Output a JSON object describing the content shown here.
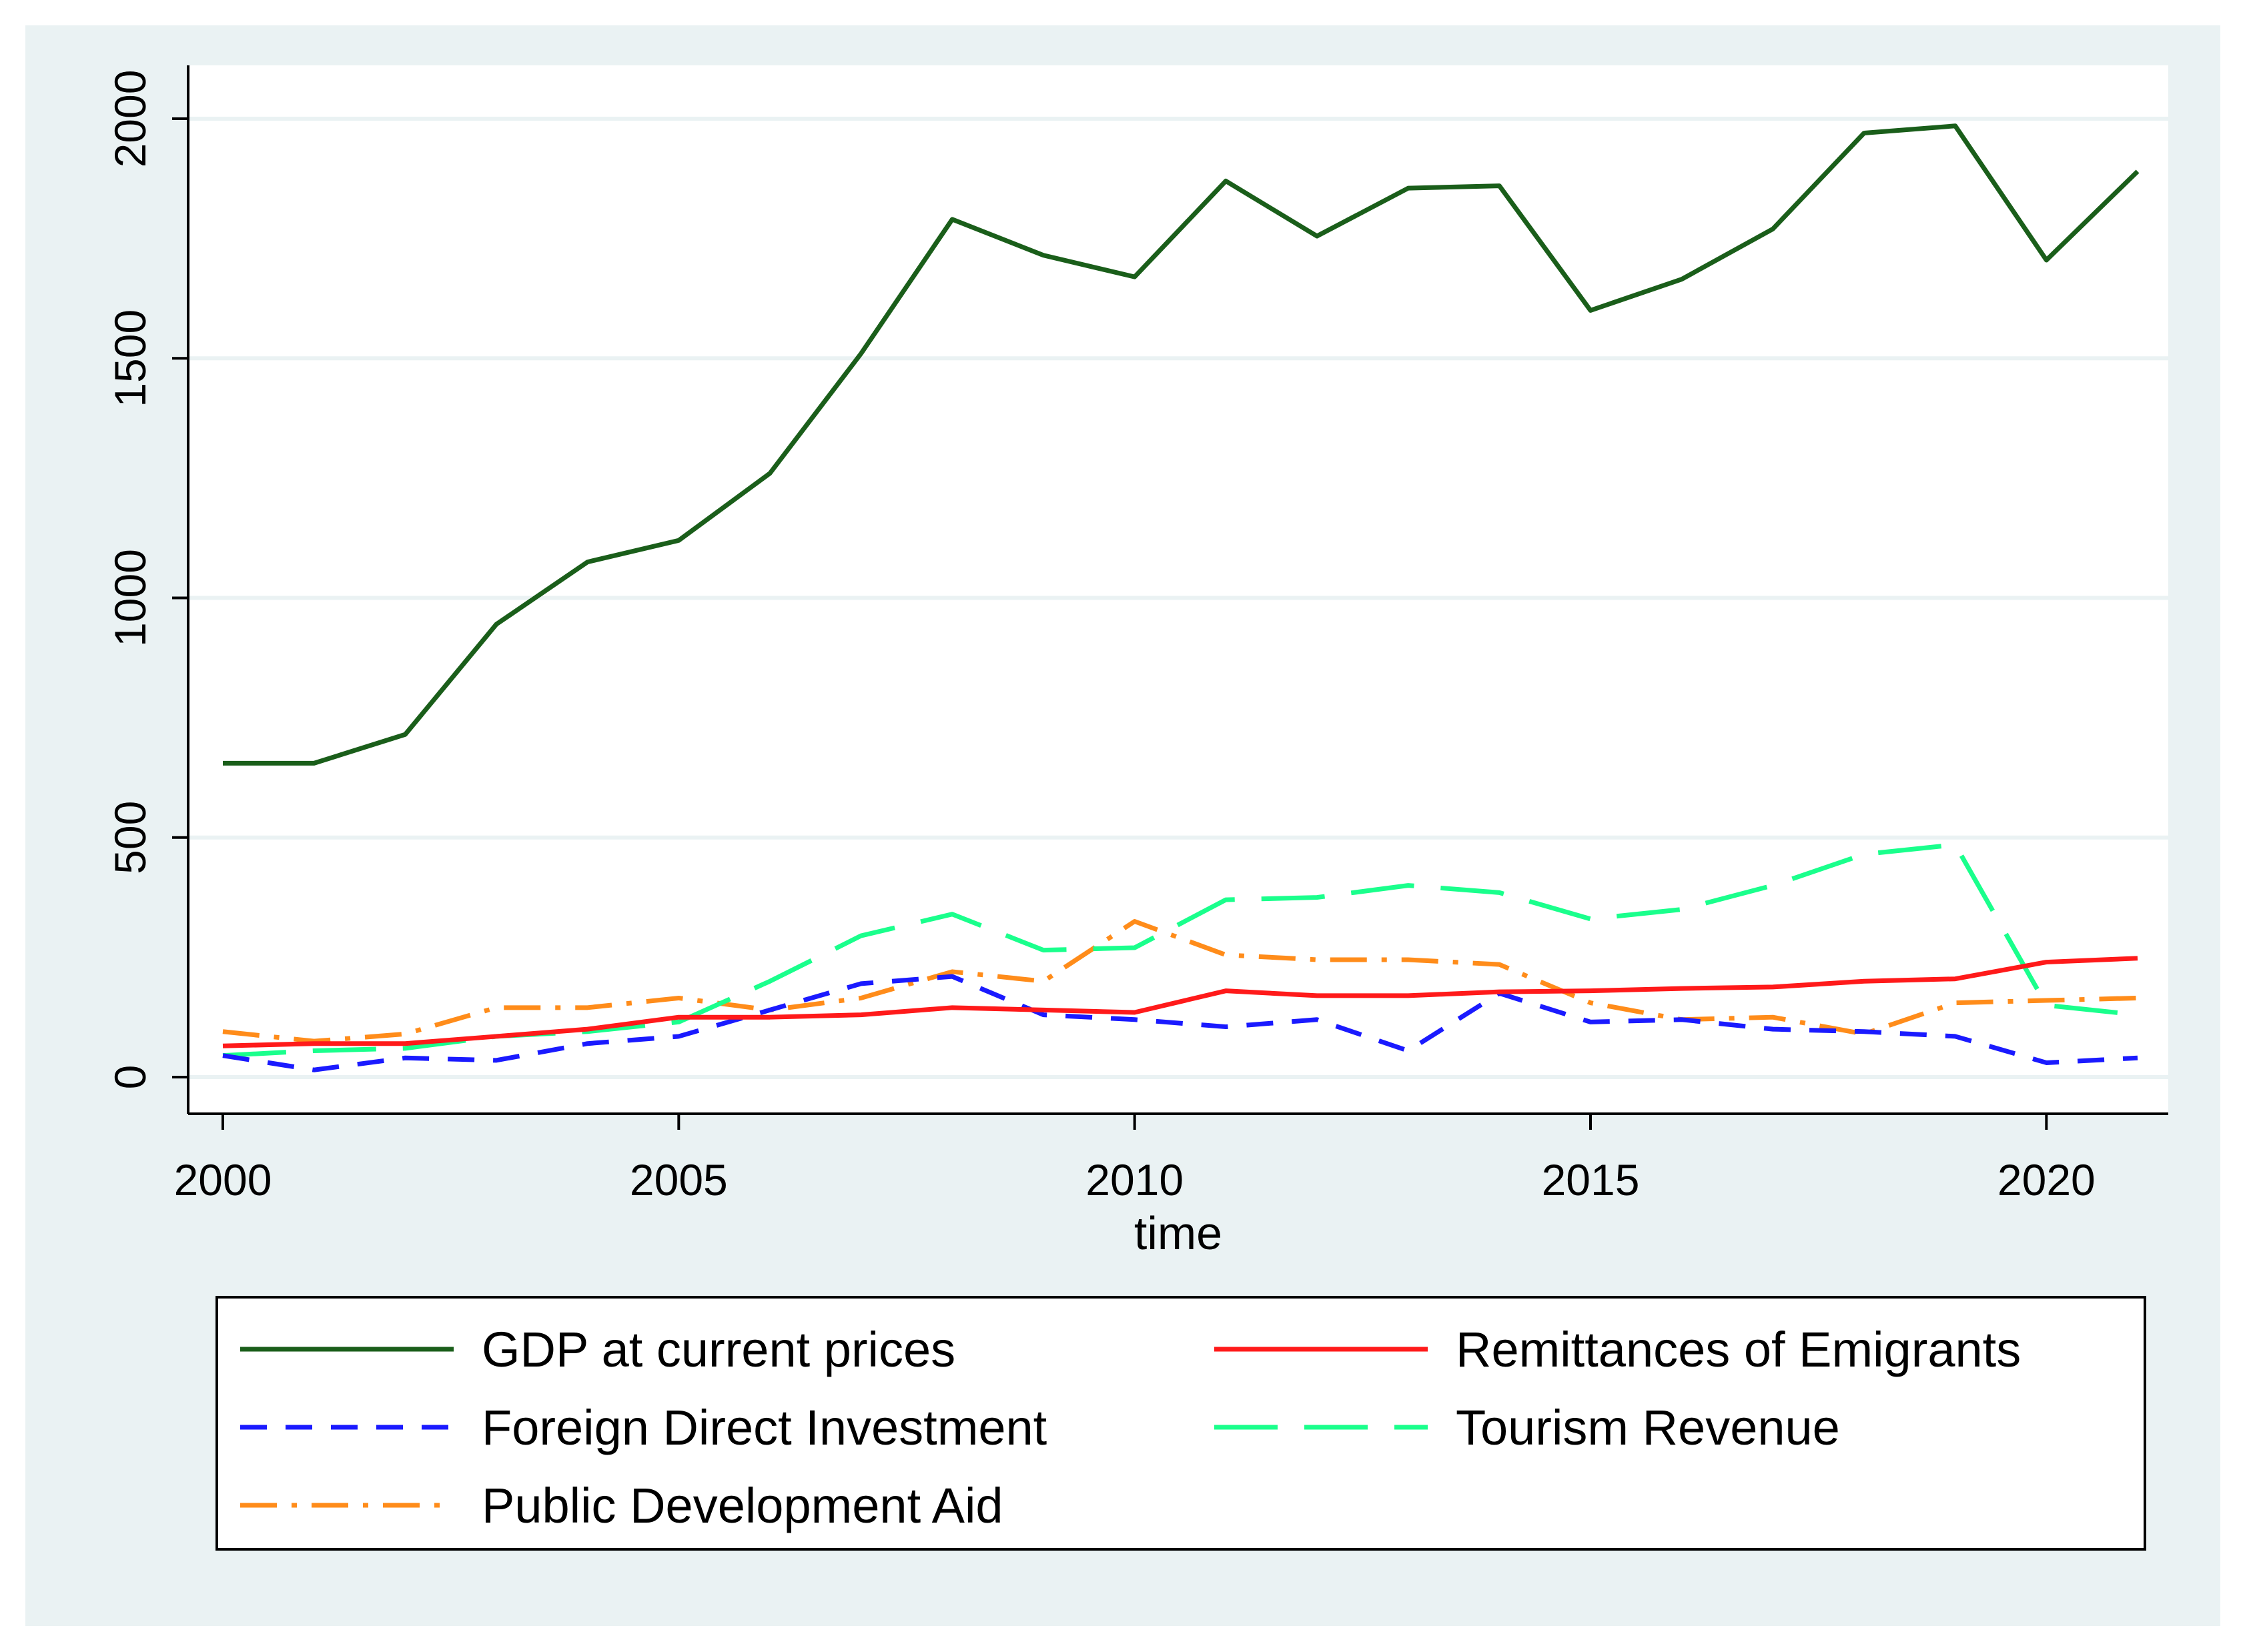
{
  "chart_data": {
    "type": "line",
    "title": "",
    "xlabel": "time",
    "ylabel": "",
    "xlim": [
      2000,
      2021
    ],
    "ylim": [
      0,
      2000
    ],
    "x_ticks": [
      2000,
      2005,
      2010,
      2015,
      2020
    ],
    "y_ticks": [
      0,
      500,
      1000,
      1500,
      2000
    ],
    "x_tick_labels": [
      "2000",
      "2005",
      "2010",
      "2015",
      "2020"
    ],
    "y_tick_labels": [
      "0",
      "500",
      "1000",
      "1500",
      "2000"
    ],
    "grid": "horizontal",
    "legend_position": "bottom",
    "x": [
      2000,
      2001,
      2002,
      2003,
      2004,
      2005,
      2006,
      2007,
      2008,
      2009,
      2010,
      2011,
      2012,
      2013,
      2014,
      2015,
      2016,
      2017,
      2018,
      2019,
      2020,
      2021
    ],
    "series": [
      {
        "name": "GDP at current prices",
        "color": "#1a5e1a",
        "dash": "solid",
        "values": [
          655,
          655,
          715,
          945,
          1075,
          1120,
          1260,
          1510,
          1790,
          1715,
          1670,
          1870,
          1755,
          1855,
          1860,
          1600,
          1665,
          1770,
          1970,
          1985,
          1705,
          1890
        ]
      },
      {
        "name": "Remittances of Emigrants",
        "color": "#ff1a1a",
        "dash": "solid",
        "values": [
          65,
          70,
          70,
          85,
          100,
          125,
          125,
          130,
          145,
          140,
          135,
          180,
          170,
          170,
          178,
          180,
          185,
          188,
          200,
          205,
          240,
          248
        ]
      },
      {
        "name": "Foreign Direct Investment",
        "color": "#1a1aff",
        "dash": "short-dash",
        "values": [
          45,
          15,
          40,
          35,
          70,
          85,
          140,
          195,
          210,
          130,
          120,
          105,
          120,
          55,
          175,
          115,
          120,
          100,
          95,
          85,
          30,
          40
        ]
      },
      {
        "name": "Tourism Revenue",
        "color": "#1aff8c",
        "dash": "long-dash",
        "values": [
          45,
          55,
          60,
          85,
          95,
          115,
          200,
          295,
          340,
          265,
          270,
          370,
          375,
          400,
          385,
          330,
          350,
          400,
          465,
          485,
          150,
          130
        ]
      },
      {
        "name": "Public Development Aid",
        "color": "#ff8c1a",
        "dash": "dash-dot",
        "values": [
          95,
          75,
          90,
          145,
          145,
          165,
          140,
          165,
          220,
          200,
          325,
          255,
          245,
          245,
          235,
          155,
          120,
          125,
          90,
          155,
          160,
          165
        ]
      }
    ]
  }
}
